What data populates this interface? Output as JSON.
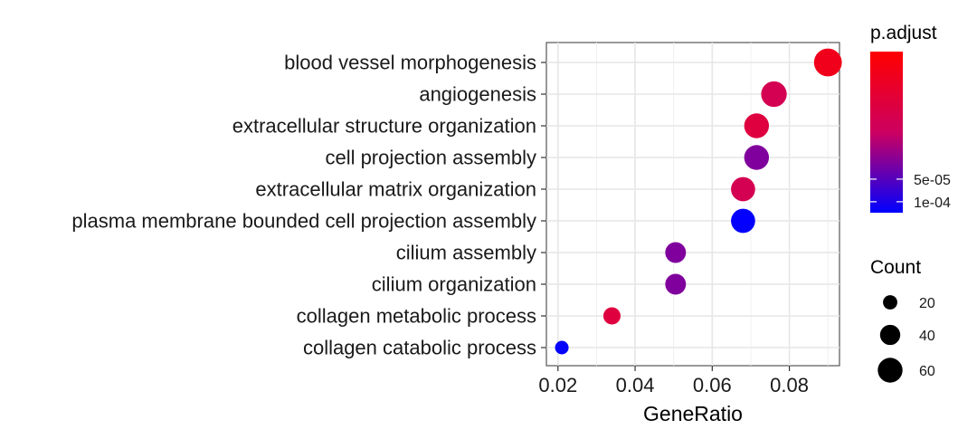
{
  "chart_data": {
    "type": "scatter",
    "title": "",
    "xlabel": "GeneRatio",
    "ylabel": "",
    "xlim": [
      0.017,
      0.093
    ],
    "x_ticks": [
      0.02,
      0.04,
      0.06,
      0.08
    ],
    "x_tick_labels": [
      "0.02",
      "0.04",
      "0.06",
      "0.08"
    ],
    "grid": true,
    "legend_placement": "right",
    "categories": [
      "blood vessel morphogenesis",
      "angiogenesis",
      "extracellular structure organization",
      "cell projection assembly",
      "extracellular matrix organization",
      "plasma membrane bounded cell projection assembly",
      "cilium assembly",
      "cilium organization",
      "collagen metabolic process",
      "collagen catabolic process"
    ],
    "points": [
      {
        "term": "blood vessel morphogenesis",
        "gene_ratio": 0.09,
        "count": 76,
        "p_adjust": 2e-06
      },
      {
        "term": "angiogenesis",
        "gene_ratio": 0.076,
        "count": 64,
        "p_adjust": 8e-06
      },
      {
        "term": "extracellular structure organization",
        "gene_ratio": 0.0715,
        "count": 60,
        "p_adjust": 5e-06
      },
      {
        "term": "cell projection assembly",
        "gene_ratio": 0.0715,
        "count": 60,
        "p_adjust": 3e-05
      },
      {
        "term": "extracellular matrix organization",
        "gene_ratio": 0.068,
        "count": 57,
        "p_adjust": 8e-06
      },
      {
        "term": "plasma membrane bounded cell projection assembly",
        "gene_ratio": 0.068,
        "count": 57,
        "p_adjust": 0.000135
      },
      {
        "term": "cilium assembly",
        "gene_ratio": 0.0505,
        "count": 42,
        "p_adjust": 3e-05
      },
      {
        "term": "cilium organization",
        "gene_ratio": 0.0505,
        "count": 42,
        "p_adjust": 3e-05
      },
      {
        "term": "collagen metabolic process",
        "gene_ratio": 0.034,
        "count": 29,
        "p_adjust": 5e-06
      },
      {
        "term": "collagen catabolic process",
        "gene_ratio": 0.021,
        "count": 18,
        "p_adjust": 0.000135
      }
    ],
    "color_legend": {
      "title": "p.adjust",
      "range": [
        1e-06,
        0.00014
      ],
      "ticks": [
        5e-05,
        0.0001
      ],
      "tick_labels": [
        "5e-05",
        "1e-04"
      ],
      "low_color": "#ff0000",
      "high_color": "#0000ff"
    },
    "size_legend": {
      "title": "Count",
      "values": [
        20,
        40,
        60
      ],
      "labels": [
        "20",
        "40",
        "60"
      ]
    }
  }
}
